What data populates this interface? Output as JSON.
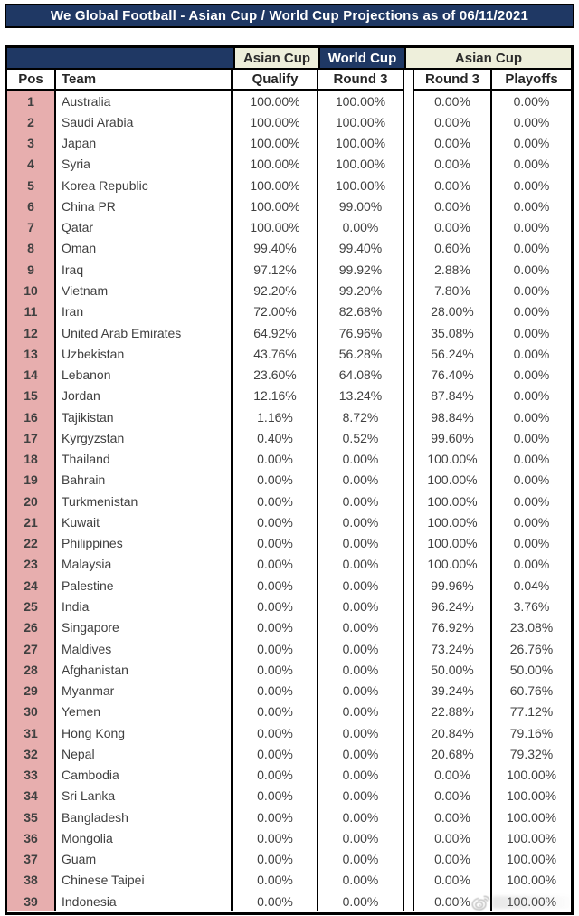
{
  "title_bar": {
    "text": "We Global Football - Asian Cup / World Cup Projections as of 06/11/2021"
  },
  "chart_data": {
    "type": "table",
    "title": "We Global Football - Asian Cup / World Cup Projections as of 06/11/2021",
    "column_groups": [
      {
        "label": "",
        "spans": [
          "Pos",
          "Team"
        ]
      },
      {
        "label": "Asian Cup",
        "spans": [
          "Qualify"
        ]
      },
      {
        "label": "World Cup",
        "spans": [
          "Round 3"
        ]
      },
      {
        "label": "Asian Cup",
        "spans": [
          "Round 3",
          "Playoffs"
        ]
      }
    ],
    "columns": [
      "Pos",
      "Team",
      "Qualify",
      "Round 3",
      "Round 3",
      "Playoffs"
    ],
    "rows": [
      [
        1,
        "Australia",
        "100.00%",
        "100.00%",
        "0.00%",
        "0.00%"
      ],
      [
        2,
        "Saudi Arabia",
        "100.00%",
        "100.00%",
        "0.00%",
        "0.00%"
      ],
      [
        3,
        "Japan",
        "100.00%",
        "100.00%",
        "0.00%",
        "0.00%"
      ],
      [
        4,
        "Syria",
        "100.00%",
        "100.00%",
        "0.00%",
        "0.00%"
      ],
      [
        5,
        "Korea Republic",
        "100.00%",
        "100.00%",
        "0.00%",
        "0.00%"
      ],
      [
        6,
        "China PR",
        "100.00%",
        "99.00%",
        "0.00%",
        "0.00%"
      ],
      [
        7,
        "Qatar",
        "100.00%",
        "0.00%",
        "0.00%",
        "0.00%"
      ],
      [
        8,
        "Oman",
        "99.40%",
        "99.40%",
        "0.60%",
        "0.00%"
      ],
      [
        9,
        "Iraq",
        "97.12%",
        "99.92%",
        "2.88%",
        "0.00%"
      ],
      [
        10,
        "Vietnam",
        "92.20%",
        "99.20%",
        "7.80%",
        "0.00%"
      ],
      [
        11,
        "Iran",
        "72.00%",
        "82.68%",
        "28.00%",
        "0.00%"
      ],
      [
        12,
        "United Arab Emirates",
        "64.92%",
        "76.96%",
        "35.08%",
        "0.00%"
      ],
      [
        13,
        "Uzbekistan",
        "43.76%",
        "56.28%",
        "56.24%",
        "0.00%"
      ],
      [
        14,
        "Lebanon",
        "23.60%",
        "64.08%",
        "76.40%",
        "0.00%"
      ],
      [
        15,
        "Jordan",
        "12.16%",
        "13.24%",
        "87.84%",
        "0.00%"
      ],
      [
        16,
        "Tajikistan",
        "1.16%",
        "8.72%",
        "98.84%",
        "0.00%"
      ],
      [
        17,
        "Kyrgyzstan",
        "0.40%",
        "0.52%",
        "99.60%",
        "0.00%"
      ],
      [
        18,
        "Thailand",
        "0.00%",
        "0.00%",
        "100.00%",
        "0.00%"
      ],
      [
        19,
        "Bahrain",
        "0.00%",
        "0.00%",
        "100.00%",
        "0.00%"
      ],
      [
        20,
        "Turkmenistan",
        "0.00%",
        "0.00%",
        "100.00%",
        "0.00%"
      ],
      [
        21,
        "Kuwait",
        "0.00%",
        "0.00%",
        "100.00%",
        "0.00%"
      ],
      [
        22,
        "Philippines",
        "0.00%",
        "0.00%",
        "100.00%",
        "0.00%"
      ],
      [
        23,
        "Malaysia",
        "0.00%",
        "0.00%",
        "100.00%",
        "0.00%"
      ],
      [
        24,
        "Palestine",
        "0.00%",
        "0.00%",
        "99.96%",
        "0.04%"
      ],
      [
        25,
        "India",
        "0.00%",
        "0.00%",
        "96.24%",
        "3.76%"
      ],
      [
        26,
        "Singapore",
        "0.00%",
        "0.00%",
        "76.92%",
        "23.08%"
      ],
      [
        27,
        "Maldives",
        "0.00%",
        "0.00%",
        "73.24%",
        "26.76%"
      ],
      [
        28,
        "Afghanistan",
        "0.00%",
        "0.00%",
        "50.00%",
        "50.00%"
      ],
      [
        29,
        "Myanmar",
        "0.00%",
        "0.00%",
        "39.24%",
        "60.76%"
      ],
      [
        30,
        "Yemen",
        "0.00%",
        "0.00%",
        "22.88%",
        "77.12%"
      ],
      [
        31,
        "Hong Kong",
        "0.00%",
        "0.00%",
        "20.84%",
        "79.16%"
      ],
      [
        32,
        "Nepal",
        "0.00%",
        "0.00%",
        "20.68%",
        "79.32%"
      ],
      [
        33,
        "Cambodia",
        "0.00%",
        "0.00%",
        "0.00%",
        "100.00%"
      ],
      [
        34,
        "Sri Lanka",
        "0.00%",
        "0.00%",
        "0.00%",
        "100.00%"
      ],
      [
        35,
        "Bangladesh",
        "0.00%",
        "0.00%",
        "0.00%",
        "100.00%"
      ],
      [
        36,
        "Mongolia",
        "0.00%",
        "0.00%",
        "0.00%",
        "100.00%"
      ],
      [
        37,
        "Guam",
        "0.00%",
        "0.00%",
        "0.00%",
        "100.00%"
      ],
      [
        38,
        "Chinese Taipei",
        "0.00%",
        "0.00%",
        "0.00%",
        "100.00%"
      ],
      [
        39,
        "Indonesia",
        "0.00%",
        "0.00%",
        "0.00%",
        "100.00%"
      ]
    ]
  },
  "colors": {
    "navy": "#1F3864",
    "cream": "#EEEFDB",
    "pink": "#E7AEAE",
    "border": "#000000",
    "text": "#404040"
  },
  "watermark": {
    "icon": "weibo-logo"
  }
}
